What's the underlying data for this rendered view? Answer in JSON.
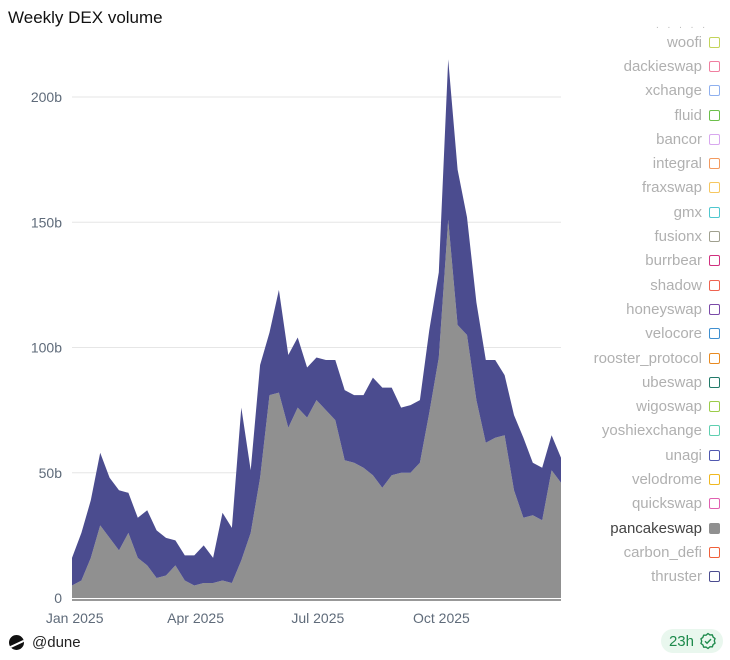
{
  "title": "Weekly DEX volume",
  "footer": {
    "handle": "@dune",
    "freshness": "23h"
  },
  "colors": {
    "navy": "#4b4c8f",
    "grey": "#909090",
    "badge_text": "#1e8a4c"
  },
  "legend": [
    {
      "label": "woofi",
      "color": "#c3d45a",
      "active": false
    },
    {
      "label": "dackieswap",
      "color": "#f07fa0",
      "active": false
    },
    {
      "label": "xchange",
      "color": "#8fb0ef",
      "active": false
    },
    {
      "label": "fluid",
      "color": "#6cbf4a",
      "active": false
    },
    {
      "label": "bancor",
      "color": "#d8a8ef",
      "active": false
    },
    {
      "label": "integral",
      "color": "#f39a5f",
      "active": false
    },
    {
      "label": "fraxswap",
      "color": "#f6c760",
      "active": false
    },
    {
      "label": "gmx",
      "color": "#4fc7cf",
      "active": false
    },
    {
      "label": "fusionx",
      "color": "#a0a08f",
      "active": false
    },
    {
      "label": "burrbear",
      "color": "#d0307f",
      "active": false
    },
    {
      "label": "shadow",
      "color": "#ef6350",
      "active": false
    },
    {
      "label": "honeyswap",
      "color": "#7a4aa8",
      "active": false
    },
    {
      "label": "velocore",
      "color": "#3f8fd0",
      "active": false
    },
    {
      "label": "rooster_protocol",
      "color": "#e88a20",
      "active": false
    },
    {
      "label": "ubeswap",
      "color": "#237a6a",
      "active": false
    },
    {
      "label": "wigoswap",
      "color": "#9ccc4a",
      "active": false
    },
    {
      "label": "yoshiexchange",
      "color": "#5fcfb0",
      "active": false
    },
    {
      "label": "unagi",
      "color": "#5058b0",
      "active": false
    },
    {
      "label": "velodrome",
      "color": "#f0b820",
      "active": false
    },
    {
      "label": "quickswap",
      "color": "#e060b0",
      "active": false
    },
    {
      "label": "pancakeswap",
      "color": "#909090",
      "active": true
    },
    {
      "label": "carbon_defi",
      "color": "#f0603a",
      "active": false
    },
    {
      "label": "thruster",
      "color": "#4b4c8f",
      "active": false
    }
  ],
  "chart_data": {
    "type": "area",
    "stacked": true,
    "title": "Weekly DEX volume",
    "ylim": [
      0,
      220
    ],
    "yticks": [
      {
        "v": 0,
        "label": "0"
      },
      {
        "v": 50,
        "label": "50b"
      },
      {
        "v": 100,
        "label": "100b"
      },
      {
        "v": 150,
        "label": "150b"
      },
      {
        "v": 200,
        "label": "200b"
      }
    ],
    "xticks": [
      {
        "date": "2025-01-01",
        "label": "Jan 2025"
      },
      {
        "date": "2025-04-01",
        "label": "Apr 2025"
      },
      {
        "date": "2025-07-01",
        "label": "Jul 2025"
      },
      {
        "date": "2025-10-01",
        "label": "Oct 2025"
      }
    ],
    "grid": true,
    "legend_position": "right",
    "x": [
      "2024-12-30",
      "2025-01-06",
      "2025-01-13",
      "2025-01-20",
      "2025-01-27",
      "2025-02-03",
      "2025-02-10",
      "2025-02-17",
      "2025-02-24",
      "2025-03-03",
      "2025-03-10",
      "2025-03-17",
      "2025-03-24",
      "2025-03-31",
      "2025-04-07",
      "2025-04-14",
      "2025-04-21",
      "2025-04-28",
      "2025-05-05",
      "2025-05-12",
      "2025-05-19",
      "2025-05-26",
      "2025-06-02",
      "2025-06-09",
      "2025-06-16",
      "2025-06-23",
      "2025-06-30",
      "2025-07-07",
      "2025-07-14",
      "2025-07-21",
      "2025-07-28",
      "2025-08-04",
      "2025-08-11",
      "2025-08-18",
      "2025-08-25",
      "2025-09-01",
      "2025-09-08",
      "2025-09-15",
      "2025-09-22",
      "2025-09-29",
      "2025-10-06",
      "2025-10-13",
      "2025-10-20",
      "2025-10-27",
      "2025-11-03",
      "2025-11-10",
      "2025-11-17",
      "2025-11-24",
      "2025-12-01",
      "2025-12-08",
      "2025-12-15",
      "2025-12-22",
      "2025-12-29"
    ],
    "series": [
      {
        "name": "pancakeswap",
        "color": "#909090",
        "values": [
          5,
          7,
          16,
          29,
          24,
          19,
          26,
          16,
          13,
          8,
          9,
          13,
          7,
          5,
          6,
          6,
          7,
          6,
          15,
          26,
          48,
          81,
          82,
          68,
          76,
          72,
          79,
          75,
          71,
          55,
          54,
          52,
          49,
          44,
          49,
          50,
          50,
          54,
          74,
          96,
          151,
          109,
          105,
          79,
          62,
          64,
          65,
          43,
          32,
          33,
          31,
          51,
          46
        ]
      },
      {
        "color": "#4b4c8f",
        "values": [
          11,
          19,
          23,
          29,
          24,
          24,
          16,
          16,
          22,
          19,
          15,
          10,
          10,
          12,
          15,
          10,
          27,
          22,
          61,
          25,
          45,
          25,
          41,
          29,
          28,
          20,
          17,
          20,
          24,
          28,
          27,
          29,
          39,
          40,
          35,
          26,
          27,
          25,
          33,
          34,
          64,
          62,
          47,
          39,
          33,
          31,
          24,
          30,
          32,
          21,
          21,
          14,
          10
        ]
      }
    ]
  }
}
